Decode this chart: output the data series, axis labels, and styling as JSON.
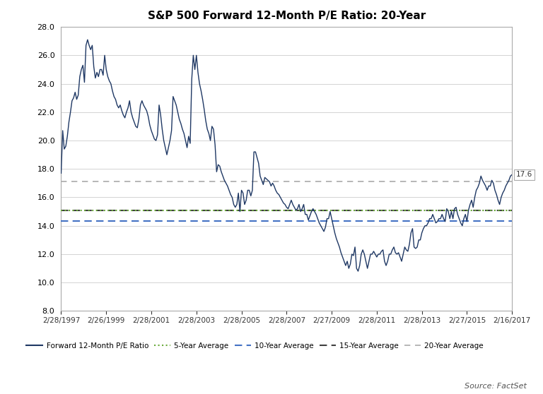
{
  "title": "S&P 500 Forward 12-Month P/E Ratio: 20-Year",
  "ylim": [
    8.0,
    28.0
  ],
  "yticks": [
    8.0,
    10.0,
    12.0,
    14.0,
    16.0,
    18.0,
    20.0,
    22.0,
    24.0,
    26.0,
    28.0
  ],
  "avg_5yr": 15.1,
  "avg_10yr": 14.35,
  "avg_15yr": 15.1,
  "avg_20yr": 17.1,
  "current_val": 17.6,
  "avg_5yr_color": "#6aaa3a",
  "avg_10yr_color": "#4472c4",
  "avg_15yr_color": "#404040",
  "avg_20yr_color": "#aaaaaa",
  "line_color": "#1f3864",
  "source_text": "Source: FactSet",
  "legend_labels": [
    "Forward 12-Month P/E Ratio",
    "5-Year Average",
    "10-Year Average",
    "15-Year Average",
    "20-Year Average"
  ],
  "x_tick_labels": [
    "2/28/1997",
    "2/26/1999",
    "2/28/2001",
    "2/28/2003",
    "2/28/2005",
    "2/28/2007",
    "2/27/2009",
    "2/28/2011",
    "2/28/2013",
    "2/27/2015",
    "2/16/2017"
  ],
  "pe_data": [
    17.7,
    20.7,
    19.4,
    19.6,
    20.3,
    21.3,
    22.0,
    22.8,
    23.0,
    23.4,
    22.9,
    23.2,
    24.5,
    25.0,
    25.3,
    24.1,
    26.7,
    27.1,
    26.7,
    26.4,
    26.7,
    25.2,
    24.4,
    24.8,
    24.5,
    25.0,
    25.0,
    24.6,
    26.0,
    25.0,
    24.5,
    24.2,
    24.0,
    23.5,
    23.1,
    22.9,
    22.5,
    22.3,
    22.5,
    22.1,
    21.8,
    21.6,
    22.0,
    22.3,
    22.8,
    22.0,
    21.6,
    21.3,
    21.0,
    20.9,
    21.5,
    22.5,
    22.8,
    22.5,
    22.3,
    22.1,
    21.7,
    21.1,
    20.7,
    20.4,
    20.1,
    20.0,
    20.4,
    22.5,
    21.8,
    20.8,
    20.0,
    19.5,
    19.0,
    19.5,
    20.0,
    20.7,
    23.1,
    22.8,
    22.5,
    22.0,
    21.5,
    21.2,
    20.8,
    20.5,
    20.0,
    19.5,
    20.3,
    19.8,
    24.3,
    26.0,
    25.0,
    26.0,
    24.8,
    24.0,
    23.5,
    22.9,
    22.2,
    21.4,
    20.8,
    20.5,
    20.0,
    21.0,
    20.8,
    19.7,
    17.8,
    18.3,
    18.2,
    17.8,
    17.5,
    17.2,
    17.0,
    16.8,
    16.5,
    16.2,
    16.0,
    15.5,
    15.3,
    15.5,
    16.3,
    15.0,
    16.5,
    16.3,
    15.5,
    15.8,
    16.5,
    16.5,
    16.1,
    16.5,
    19.2,
    19.2,
    18.8,
    18.4,
    17.5,
    17.2,
    16.9,
    17.4,
    17.3,
    17.2,
    17.1,
    16.8,
    17.0,
    16.8,
    16.5,
    16.3,
    16.2,
    16.0,
    15.8,
    15.6,
    15.5,
    15.3,
    15.2,
    15.5,
    15.8,
    15.5,
    15.3,
    15.1,
    15.2,
    15.5,
    15.0,
    15.2,
    15.5,
    14.8,
    14.8,
    14.4,
    14.7,
    15.0,
    15.2,
    15.0,
    14.8,
    14.5,
    14.2,
    14.0,
    13.8,
    13.6,
    13.9,
    14.5,
    14.5,
    15.0,
    14.5,
    14.0,
    13.5,
    13.1,
    12.8,
    12.5,
    12.1,
    11.8,
    11.5,
    11.2,
    11.5,
    11.0,
    11.3,
    12.0,
    11.9,
    12.5,
    11.0,
    10.8,
    11.2,
    12.0,
    12.3,
    12.0,
    11.5,
    11.0,
    11.5,
    12.0,
    12.0,
    12.2,
    12.0,
    11.8,
    12.0,
    12.0,
    12.2,
    12.3,
    11.5,
    11.2,
    11.5,
    12.0,
    12.0,
    12.3,
    12.5,
    12.1,
    12.0,
    12.1,
    11.8,
    11.5,
    12.0,
    12.5,
    12.3,
    12.2,
    12.7,
    13.5,
    13.8,
    12.5,
    12.4,
    12.5,
    13.0,
    13.0,
    13.5,
    13.8,
    14.0,
    14.0,
    14.2,
    14.5,
    14.5,
    14.8,
    14.5,
    14.2,
    14.3,
    14.5,
    14.5,
    14.8,
    14.5,
    14.3,
    15.2,
    15.0,
    14.5,
    15.0,
    14.5,
    15.2,
    15.3,
    14.8,
    14.5,
    14.2,
    14.0,
    14.5,
    14.8,
    14.3,
    15.1,
    15.5,
    15.8,
    15.3,
    16.0,
    16.5,
    16.7,
    17.0,
    17.5,
    17.2,
    17.0,
    16.8,
    16.5,
    16.8,
    16.8,
    17.2,
    17.0,
    16.5,
    16.2,
    15.8,
    15.5,
    16.0,
    16.3,
    16.5,
    16.8,
    17.0,
    17.2,
    17.5,
    17.6
  ]
}
